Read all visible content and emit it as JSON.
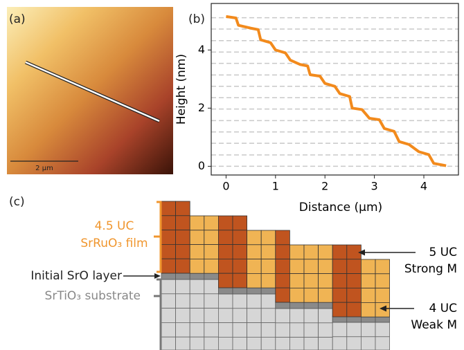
{
  "panel_a": {
    "label": "(a)",
    "scale_bar": "2 µm"
  },
  "chart_data": {
    "type": "line",
    "panel_label": "(b)",
    "x_label": "Distance (μm)",
    "y_label": "Height (nm)",
    "x": [
      0,
      0.2,
      0.25,
      0.5,
      0.65,
      0.7,
      0.9,
      1.0,
      1.2,
      1.3,
      1.5,
      1.65,
      1.7,
      1.9,
      2.0,
      2.2,
      2.3,
      2.5,
      2.55,
      2.75,
      2.9,
      3.1,
      3.2,
      3.4,
      3.5,
      3.7,
      3.9,
      4.1,
      4.2,
      4.45
    ],
    "values": [
      5.15,
      5.1,
      4.85,
      4.75,
      4.7,
      4.35,
      4.25,
      4.0,
      3.9,
      3.65,
      3.5,
      3.45,
      3.15,
      3.1,
      2.85,
      2.75,
      2.5,
      2.4,
      2.0,
      1.95,
      1.65,
      1.6,
      1.3,
      1.2,
      0.85,
      0.75,
      0.5,
      0.4,
      0.1,
      0.02
    ],
    "color": "#f28a1c",
    "xlim": [
      -0.3,
      4.7
    ],
    "xticks": [
      0,
      1,
      2,
      3,
      4
    ],
    "ylim": [
      -0.3,
      5.6
    ],
    "yticks": [
      0,
      2,
      4
    ],
    "hlines": [
      0,
      0.39,
      0.79,
      1.18,
      1.57,
      1.97,
      2.36,
      2.75,
      3.14,
      3.54,
      3.93,
      4.32,
      4.72,
      5.11
    ]
  },
  "panel_c": {
    "label": "(c)",
    "film_thickness": "4.5 UC",
    "film": "SrRuO₃ film",
    "sro_layer": "Initial SrO layer",
    "substrate": "SrTiO₃ substrate",
    "strong_uc": "5 UC",
    "strong": "Strong M",
    "weak_uc": "4 UC",
    "weak": "Weak M"
  }
}
